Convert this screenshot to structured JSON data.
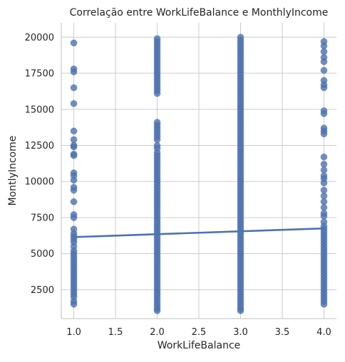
{
  "chart_data": {
    "type": "scatter",
    "title": "Correlação entre WorkLifeBalance e MonthlyIncome",
    "xlabel": "WorkLifeBalance",
    "ylabel": "MontlyIncome",
    "xlim": [
      0.85,
      4.15
    ],
    "ylim": [
      500,
      21000
    ],
    "x_ticks": [
      1.0,
      1.5,
      2.0,
      2.5,
      3.0,
      3.5,
      4.0
    ],
    "x_tick_labels": [
      "1.0",
      "1.5",
      "2.0",
      "2.5",
      "3.0",
      "3.5",
      "4.0"
    ],
    "y_ticks": [
      2500,
      5000,
      7500,
      10000,
      12500,
      15000,
      17500,
      20000
    ],
    "y_tick_labels": [
      "2500",
      "5000",
      "7500",
      "10000",
      "12500",
      "15000",
      "17500",
      "20000"
    ],
    "grid": true,
    "series": [
      {
        "x": 1.0,
        "y": [
          19600,
          17800,
          17600,
          16500,
          15400,
          13500,
          12900,
          12500,
          12400,
          11900,
          11800,
          10600,
          10400,
          10100,
          9600,
          9400,
          8600,
          7700,
          7500,
          6700,
          6400,
          6200,
          6000,
          5800,
          5500,
          5200,
          5000,
          4800,
          4600,
          4400,
          4200,
          4000,
          3800,
          3600,
          3400,
          3200,
          3000,
          2800,
          2600,
          2400,
          2200,
          2000,
          1700,
          1500
        ]
      },
      {
        "x": 2.0,
        "y": [
          19900,
          19700,
          19500,
          19300,
          19100,
          18900,
          18700,
          18500,
          18300,
          18100,
          17900,
          17700,
          17500,
          17300,
          17100,
          16900,
          16700,
          16500,
          16300,
          16100,
          14100,
          13900,
          13700,
          13500,
          13300,
          13100,
          12900,
          12500,
          12300,
          12000,
          11800,
          11600,
          11400,
          11200,
          11000,
          10800,
          10600,
          10400,
          10200,
          10000,
          9800,
          9600,
          9400,
          9200,
          9000,
          8800,
          8600,
          8400,
          8200,
          8000,
          7800,
          7600,
          7400,
          7200,
          7000,
          6800,
          6600,
          6400,
          6200,
          6000,
          5800,
          5600,
          5400,
          5200,
          5000,
          4800,
          4600,
          4400,
          4200,
          4000,
          3800,
          3600,
          3400,
          3200,
          3000,
          2800,
          2600,
          2400,
          2200,
          2000,
          1800,
          1600,
          1400,
          1200,
          1050
        ]
      },
      {
        "x": 3.0,
        "y": [
          20000,
          19800,
          19600,
          19400,
          19200,
          19000,
          18800,
          18600,
          18400,
          18200,
          18000,
          17800,
          17600,
          17400,
          17200,
          17000,
          16800,
          16600,
          16400,
          16200,
          16000,
          15800,
          15600,
          15400,
          15200,
          15000,
          14800,
          14600,
          14400,
          14200,
          14000,
          13800,
          13600,
          13400,
          13200,
          13000,
          12800,
          12600,
          12400,
          12200,
          12000,
          11800,
          11600,
          11400,
          11200,
          11000,
          10800,
          10600,
          10400,
          10200,
          10000,
          9800,
          9600,
          9400,
          9200,
          9000,
          8800,
          8600,
          8400,
          8200,
          8000,
          7800,
          7600,
          7400,
          7200,
          7000,
          6800,
          6600,
          6400,
          6200,
          6000,
          5800,
          5600,
          5400,
          5200,
          5000,
          4800,
          4600,
          4400,
          4200,
          4000,
          3800,
          3600,
          3400,
          3200,
          3000,
          2800,
          2600,
          2400,
          2200,
          2000,
          1800,
          1600,
          1400,
          1200,
          1050
        ]
      },
      {
        "x": 4.0,
        "y": [
          19700,
          19400,
          19000,
          18600,
          18300,
          17700,
          17000,
          16700,
          16500,
          14900,
          14700,
          13700,
          13500,
          13300,
          11700,
          11200,
          10800,
          10400,
          10200,
          9900,
          9400,
          9000,
          8600,
          8200,
          7800,
          7600,
          7200,
          6900,
          6700,
          6500,
          6300,
          6100,
          5900,
          5700,
          5500,
          5300,
          5100,
          4900,
          4700,
          4500,
          4300,
          4100,
          3900,
          3700,
          3500,
          3300,
          3100,
          2900,
          2700,
          2500,
          2300,
          2100,
          1900,
          1700,
          1500
        ]
      }
    ],
    "regression": {
      "x": [
        1.0,
        4.0
      ],
      "y": [
        6150,
        6750
      ]
    },
    "colors": {
      "points": "#4c72b0",
      "line": "#4c72b0",
      "grid": "#cccccc"
    }
  }
}
